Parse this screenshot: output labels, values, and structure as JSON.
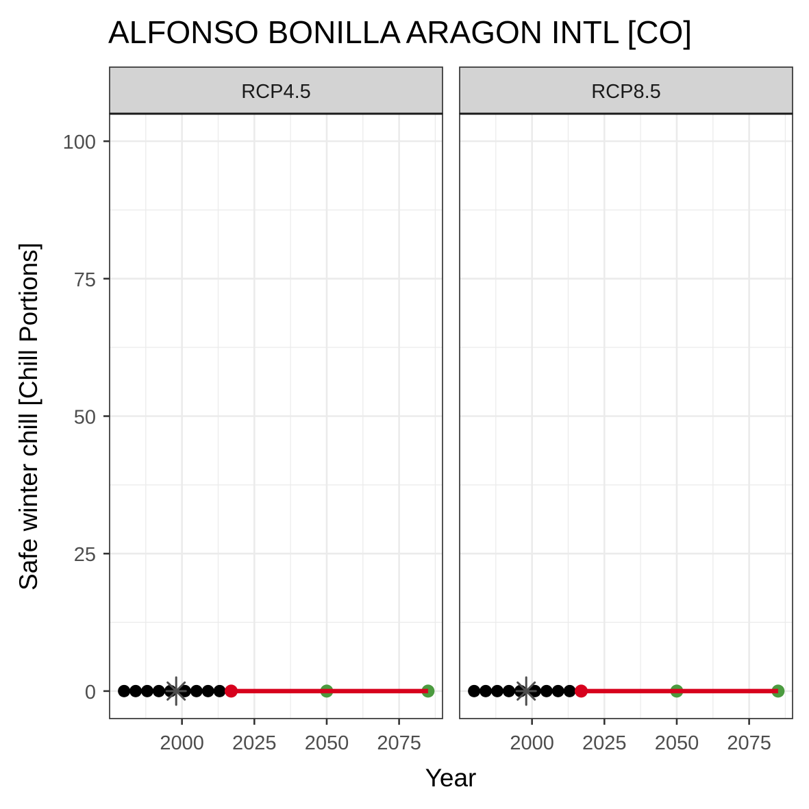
{
  "chart_data": {
    "type": "scatter",
    "title": "ALFONSO BONILLA ARAGON INTL [CO]",
    "xlabel": "Year",
    "ylabel": "Safe winter chill [Chill Portions]",
    "xlim": [
      1975,
      2090
    ],
    "ylim": [
      -5,
      105
    ],
    "x_ticks": [
      2000,
      2025,
      2050,
      2075
    ],
    "y_ticks": [
      0,
      25,
      50,
      75,
      100
    ],
    "grid": true,
    "colors": {
      "historic": "#000000",
      "baseline_marker": "#4d4d4d",
      "projection_line": "#d7011d",
      "projection_start": "#d7011d",
      "future_scenarios": "#4b9b3f",
      "panel_strip": "#d3d3d3",
      "grid": "#ebebeb"
    },
    "panels": [
      {
        "label": "RCP4.5",
        "historic_points": {
          "x": [
            1980,
            1984,
            1988,
            1992,
            1996,
            2001,
            2005,
            2009,
            2013
          ],
          "y": [
            0,
            0,
            0,
            0,
            0,
            0,
            0,
            0,
            0
          ]
        },
        "baseline": {
          "x": 1998,
          "y": 0
        },
        "projection_line": {
          "x": [
            2017,
            2085
          ],
          "y": [
            0,
            0
          ]
        },
        "projection_start": {
          "x": 2017,
          "y": 0
        },
        "future_points": {
          "x": [
            2050,
            2085
          ],
          "y": [
            0,
            0
          ]
        }
      },
      {
        "label": "RCP8.5",
        "historic_points": {
          "x": [
            1980,
            1984,
            1988,
            1992,
            1996,
            2001,
            2005,
            2009,
            2013
          ],
          "y": [
            0,
            0,
            0,
            0,
            0,
            0,
            0,
            0,
            0
          ]
        },
        "baseline": {
          "x": 1998,
          "y": 0
        },
        "projection_line": {
          "x": [
            2017,
            2085
          ],
          "y": [
            0,
            0
          ]
        },
        "projection_start": {
          "x": 2017,
          "y": 0
        },
        "future_points": {
          "x": [
            2050,
            2085
          ],
          "y": [
            0,
            0
          ]
        }
      }
    ]
  }
}
